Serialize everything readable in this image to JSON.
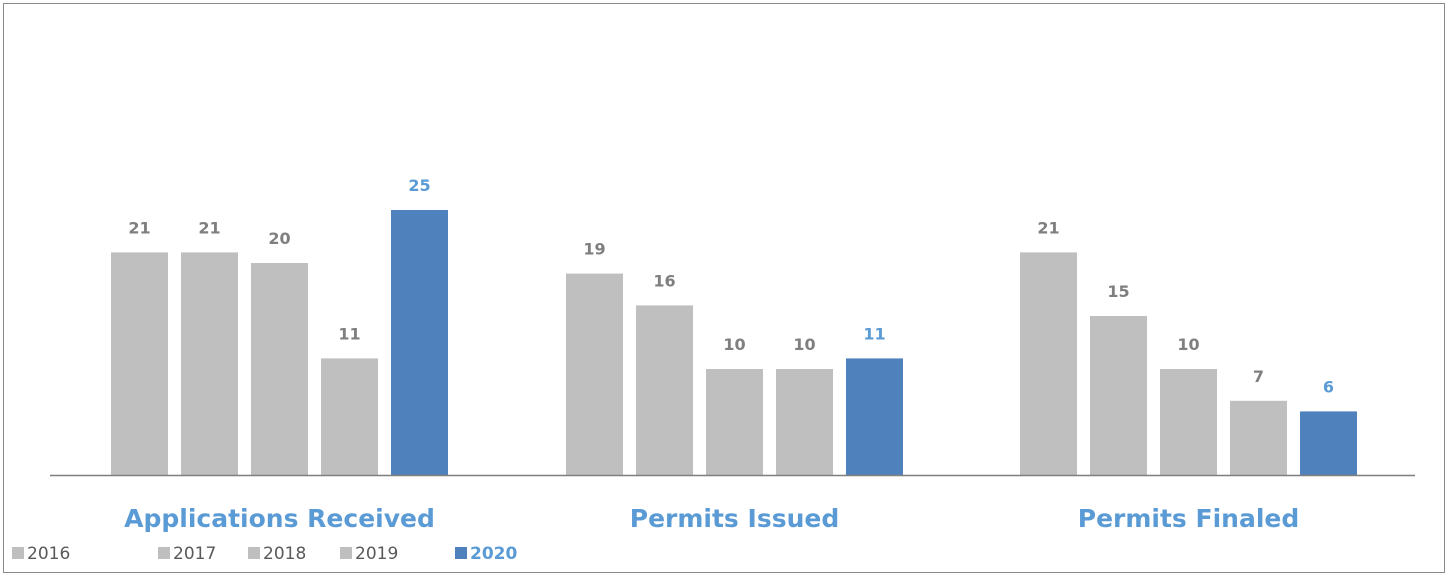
{
  "chart_data": {
    "type": "bar",
    "categories": [
      "Applications Received",
      "Permits Issued",
      "Permits Finaled"
    ],
    "series": [
      {
        "name": "2016",
        "values": [
          21,
          19,
          21
        ],
        "color": "#bfbfbf"
      },
      {
        "name": "2017",
        "values": [
          21,
          16,
          15
        ],
        "color": "#bfbfbf"
      },
      {
        "name": "2018",
        "values": [
          20,
          10,
          10
        ],
        "color": "#bfbfbf"
      },
      {
        "name": "2019",
        "values": [
          11,
          10,
          7
        ],
        "color": "#bfbfbf"
      },
      {
        "name": "2020",
        "values": [
          25,
          11,
          6
        ],
        "color": "#4f81bd",
        "highlight": true
      }
    ],
    "ylim": [
      0,
      29
    ],
    "grid": false,
    "legend_position": "bottom-left",
    "colors": {
      "axis": "#7f7f7f",
      "value_label": "#7f7f7f",
      "highlight_label": "#5b9bd5",
      "category_label": "#5b9bd5",
      "legend_text": "#595959"
    }
  }
}
